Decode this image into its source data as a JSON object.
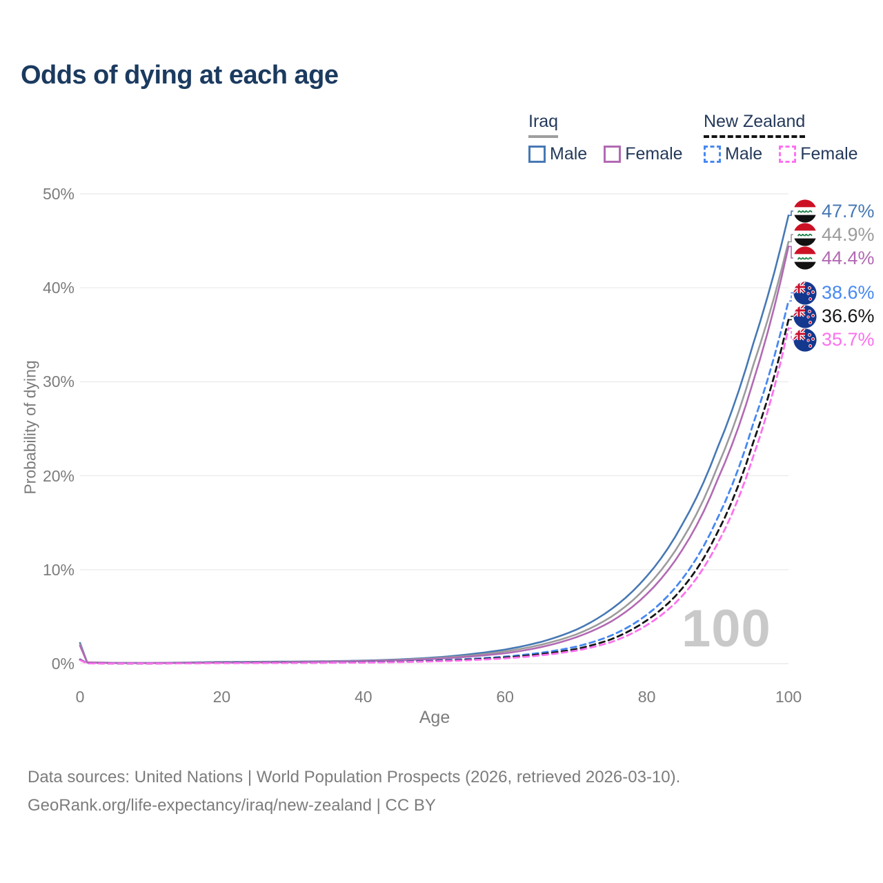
{
  "title": "Odds of dying at each age",
  "legend": {
    "groups": [
      {
        "id": "iraq",
        "label": "Iraq",
        "line_style": "solid",
        "underline_color": "#9e9e9e",
        "items": [
          {
            "label": "Male",
            "color": "#4678b4",
            "dashed": false
          },
          {
            "label": "Female",
            "color": "#b269b3",
            "dashed": false
          }
        ]
      },
      {
        "id": "nz",
        "label": "New Zealand",
        "line_style": "dashed",
        "underline_color": "#141414",
        "items": [
          {
            "label": "Male",
            "color": "#4688f1",
            "dashed": true
          },
          {
            "label": "Female",
            "color": "#fc71ee",
            "dashed": true
          }
        ]
      }
    ]
  },
  "chart_data": {
    "type": "line",
    "title": "Odds of dying at each age",
    "xlabel": "Age",
    "ylabel": "Probability of dying",
    "xlim": [
      0,
      100
    ],
    "ylim_pct": [
      0,
      50
    ],
    "x_ticks": [
      0,
      20,
      40,
      60,
      80,
      100
    ],
    "y_ticks_pct": [
      0,
      10,
      20,
      30,
      40,
      50
    ],
    "y_tick_labels": [
      "0%",
      "10%",
      "20%",
      "30%",
      "40%",
      "50%"
    ],
    "grid": "horizontal-only",
    "legend_position": "top-right",
    "hover_age_indicator": "100",
    "ages": [
      0,
      1,
      5,
      10,
      15,
      20,
      25,
      30,
      35,
      40,
      45,
      50,
      55,
      60,
      65,
      70,
      75,
      80,
      85,
      90,
      95,
      100
    ],
    "series": [
      {
        "name": "Iraq Male",
        "country": "iraq",
        "sex": "male",
        "flag_icon": "iraq-flag-icon",
        "color": "#4678b4",
        "dashed": false,
        "end_label": "47.7%",
        "end_value_pct": 47.7,
        "values_pct": [
          2.2,
          0.15,
          0.08,
          0.07,
          0.12,
          0.18,
          0.2,
          0.22,
          0.26,
          0.32,
          0.45,
          0.65,
          1.0,
          1.5,
          2.3,
          3.6,
          5.8,
          9.3,
          14.8,
          23.0,
          34.0,
          47.7
        ]
      },
      {
        "name": "Iraq Both sexes",
        "country": "iraq",
        "sex": "both",
        "flag_icon": "iraq-flag-icon",
        "color": "#9b9b9b",
        "dashed": false,
        "end_label": "44.9%",
        "end_value_pct": 44.9,
        "values_pct": [
          2.05,
          0.14,
          0.075,
          0.065,
          0.1,
          0.15,
          0.17,
          0.19,
          0.23,
          0.29,
          0.4,
          0.57,
          0.85,
          1.3,
          2.0,
          3.1,
          5.0,
          8.2,
          13.2,
          21.0,
          31.7,
          44.9
        ]
      },
      {
        "name": "Iraq Female",
        "country": "iraq",
        "sex": "female",
        "flag_icon": "iraq-flag-icon",
        "color": "#b269b3",
        "dashed": false,
        "end_label": "44.4%",
        "end_value_pct": 44.4,
        "values_pct": [
          1.9,
          0.13,
          0.07,
          0.06,
          0.08,
          0.11,
          0.13,
          0.16,
          0.2,
          0.26,
          0.35,
          0.5,
          0.75,
          1.1,
          1.75,
          2.8,
          4.5,
          7.4,
          12.1,
          19.6,
          30.0,
          44.4
        ]
      },
      {
        "name": "New Zealand Male",
        "country": "nz",
        "sex": "male",
        "flag_icon": "nz-flag-icon",
        "color": "#4688f1",
        "dashed": true,
        "end_label": "38.6%",
        "end_value_pct": 38.6,
        "values_pct": [
          0.45,
          0.04,
          0.02,
          0.02,
          0.05,
          0.09,
          0.1,
          0.1,
          0.12,
          0.15,
          0.22,
          0.33,
          0.5,
          0.75,
          1.15,
          1.8,
          3.0,
          5.2,
          9.0,
          15.5,
          25.5,
          38.6
        ]
      },
      {
        "name": "New Zealand Both sexes",
        "country": "nz",
        "sex": "both",
        "flag_icon": "nz-flag-icon",
        "color": "#161616",
        "dashed": true,
        "end_label": "36.6%",
        "end_value_pct": 36.6,
        "values_pct": [
          0.42,
          0.035,
          0.018,
          0.018,
          0.04,
          0.07,
          0.08,
          0.09,
          0.1,
          0.13,
          0.19,
          0.28,
          0.43,
          0.65,
          1.0,
          1.55,
          2.6,
          4.6,
          8.0,
          14.0,
          23.5,
          36.6
        ]
      },
      {
        "name": "New Zealand Female",
        "country": "nz",
        "sex": "female",
        "flag_icon": "nz-flag-icon",
        "color": "#fc71ee",
        "dashed": true,
        "end_label": "35.7%",
        "end_value_pct": 35.7,
        "values_pct": [
          0.38,
          0.03,
          0.015,
          0.015,
          0.03,
          0.05,
          0.06,
          0.07,
          0.09,
          0.11,
          0.16,
          0.24,
          0.37,
          0.56,
          0.88,
          1.38,
          2.3,
          4.1,
          7.2,
          12.8,
          22.0,
          35.7
        ]
      }
    ]
  },
  "footer": {
    "line1": "Data sources: United Nations | World Population Prospects (2026, retrieved 2026-03-10).",
    "line2": "GeoRank.org/life-expectancy/iraq/new-zealand | CC BY"
  }
}
